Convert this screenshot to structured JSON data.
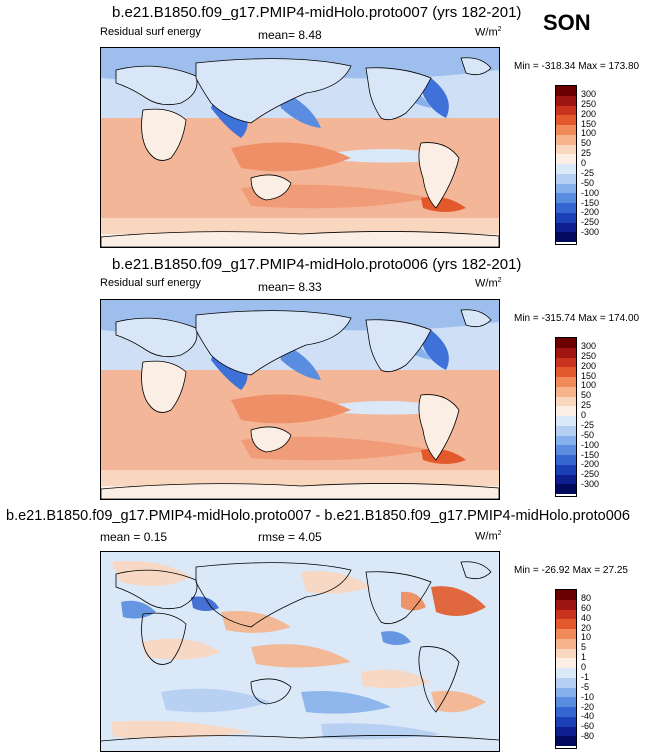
{
  "season": "SON",
  "units": "W/m",
  "units_sup": "2",
  "panels": [
    {
      "title": "b.e21.B1850.f09_g17.PMIP4-midHolo.proto007 (yrs 182-201)",
      "left_label": "Residual surf energy",
      "stat": "mean=  8.48",
      "minmax": "Min = -318.34 Max = 173.80",
      "levels": [
        "300",
        "250",
        "200",
        "150",
        "100",
        "50",
        "25",
        "0",
        "-25",
        "-50",
        "-100",
        "-150",
        "-200",
        "-250",
        "-300"
      ]
    },
    {
      "title": "b.e21.B1850.f09_g17.PMIP4-midHolo.proto006 (yrs 182-201)",
      "left_label": "Residual surf energy",
      "stat": "mean=  8.33",
      "minmax": "Min = -315.74 Max = 174.00",
      "levels": [
        "300",
        "250",
        "200",
        "150",
        "100",
        "50",
        "25",
        "0",
        "-25",
        "-50",
        "-100",
        "-150",
        "-200",
        "-250",
        "-300"
      ]
    },
    {
      "title": "b.e21.B1850.f09_g17.PMIP4-midHolo.proto007 - b.e21.B1850.f09_g17.PMIP4-midHolo.proto006",
      "left_label": "mean =  0.15",
      "stat": "rmse =  4.05",
      "minmax": "Min = -26.92 Max = 27.25",
      "levels": [
        "80",
        "60",
        "40",
        "20",
        "10",
        "5",
        "1",
        "0",
        "-1",
        "-5",
        "-10",
        "-20",
        "-40",
        "-60",
        "-80"
      ]
    }
  ],
  "colors": {
    "scale": [
      "#6b0000",
      "#9e1512",
      "#c8321e",
      "#e25a2c",
      "#f08a5a",
      "#f6b48c",
      "#f9d7bf",
      "#fbeee4",
      "#dbe8f8",
      "#b5cff3",
      "#86b1ec",
      "#5a8de0",
      "#3565d0",
      "#1a3fb6",
      "#0d1f8e",
      "#020a5e"
    ],
    "land": "#fbe9da",
    "warm": "#f4a88a",
    "cool": "#c6dbf4",
    "deep_blue": "#3a6bd6"
  }
}
